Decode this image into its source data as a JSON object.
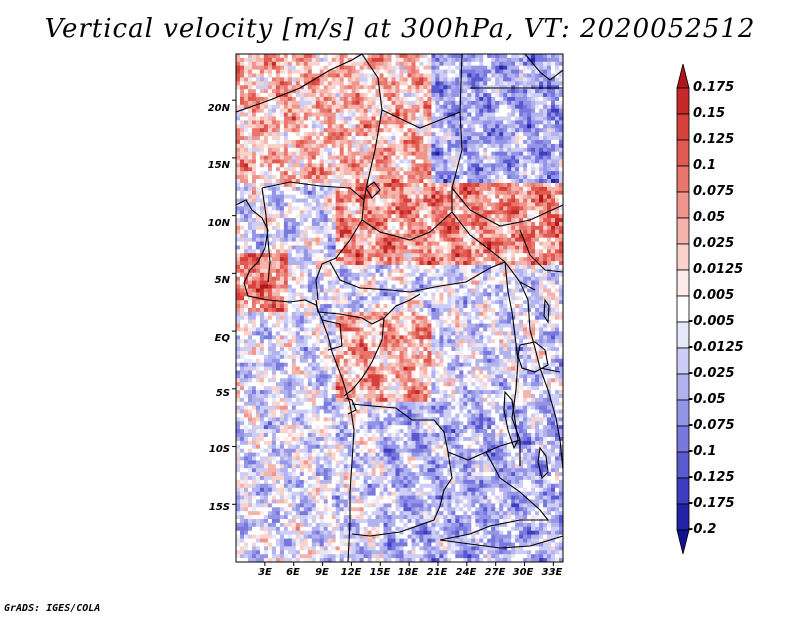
{
  "title": "Vertical velocity [m/s] at 300hPa, VT: 2020052512",
  "credit": "GrADS: IGES/COLA",
  "map": {
    "variable": "Vertical velocity",
    "units": "m/s",
    "level": "300hPa",
    "valid_time": "2020052512",
    "lat_range": [
      -20,
      24
    ],
    "lon_range": [
      0,
      34
    ],
    "lat_labels": [
      {
        "value": 20,
        "label": "20N"
      },
      {
        "value": 15,
        "label": "15N"
      },
      {
        "value": 10,
        "label": "10N"
      },
      {
        "value": 5,
        "label": "5N"
      },
      {
        "value": 0,
        "label": "EQ"
      },
      {
        "value": -5,
        "label": "5S"
      },
      {
        "value": -10,
        "label": "10S"
      },
      {
        "value": -15,
        "label": "15S"
      }
    ],
    "lon_labels": [
      {
        "value": 3,
        "label": "3E"
      },
      {
        "value": 6,
        "label": "6E"
      },
      {
        "value": 9,
        "label": "9E"
      },
      {
        "value": 12,
        "label": "12E"
      },
      {
        "value": 15,
        "label": "15E"
      },
      {
        "value": 18,
        "label": "18E"
      },
      {
        "value": 21,
        "label": "21E"
      },
      {
        "value": 24,
        "label": "24E"
      },
      {
        "value": 27,
        "label": "27E"
      },
      {
        "value": 30,
        "label": "30E"
      },
      {
        "value": 33,
        "label": "33E"
      }
    ],
    "zones": [
      {
        "lat_min": 13,
        "lat_max": 24,
        "lon_min": 0,
        "lon_max": 20,
        "tendency": 0.35
      },
      {
        "lat_min": 6,
        "lat_max": 13,
        "lon_min": 10,
        "lon_max": 34,
        "tendency": 0.6
      },
      {
        "lat_min": 2,
        "lat_max": 7,
        "lon_min": 0,
        "lon_max": 5,
        "tendency": 0.7
      },
      {
        "lat_min": -6,
        "lat_max": 2,
        "lon_min": 10,
        "lon_max": 20,
        "tendency": 0.45
      },
      {
        "lat_min": 13,
        "lat_max": 24,
        "lon_min": 20,
        "lon_max": 34,
        "tendency": -0.55
      },
      {
        "lat_min": -20,
        "lat_max": -6,
        "lon_min": 15,
        "lon_max": 34,
        "tendency": -0.45
      }
    ]
  },
  "colorbar": {
    "levels": [
      "0.175",
      "0.15",
      "0.125",
      "0.1",
      "0.075",
      "0.05",
      "0.025",
      "0.0125",
      "0.005",
      "-0.005",
      "-0.0125",
      "-0.025",
      "-0.05",
      "-0.075",
      "-0.1",
      "-0.125",
      "-0.175",
      "-0.2"
    ],
    "colors": [
      "#b0161b",
      "#c52a28",
      "#d6413b",
      "#e15a52",
      "#e8766c",
      "#ef958b",
      "#f5b4ab",
      "#f9d2cc",
      "#fcebe8",
      "#ffffff",
      "#e7e7fa",
      "#cdcdf5",
      "#b2b2ef",
      "#9595e8",
      "#7878de",
      "#5a5ad0",
      "#3d3dbf",
      "#2323a8",
      "#121290"
    ]
  }
}
